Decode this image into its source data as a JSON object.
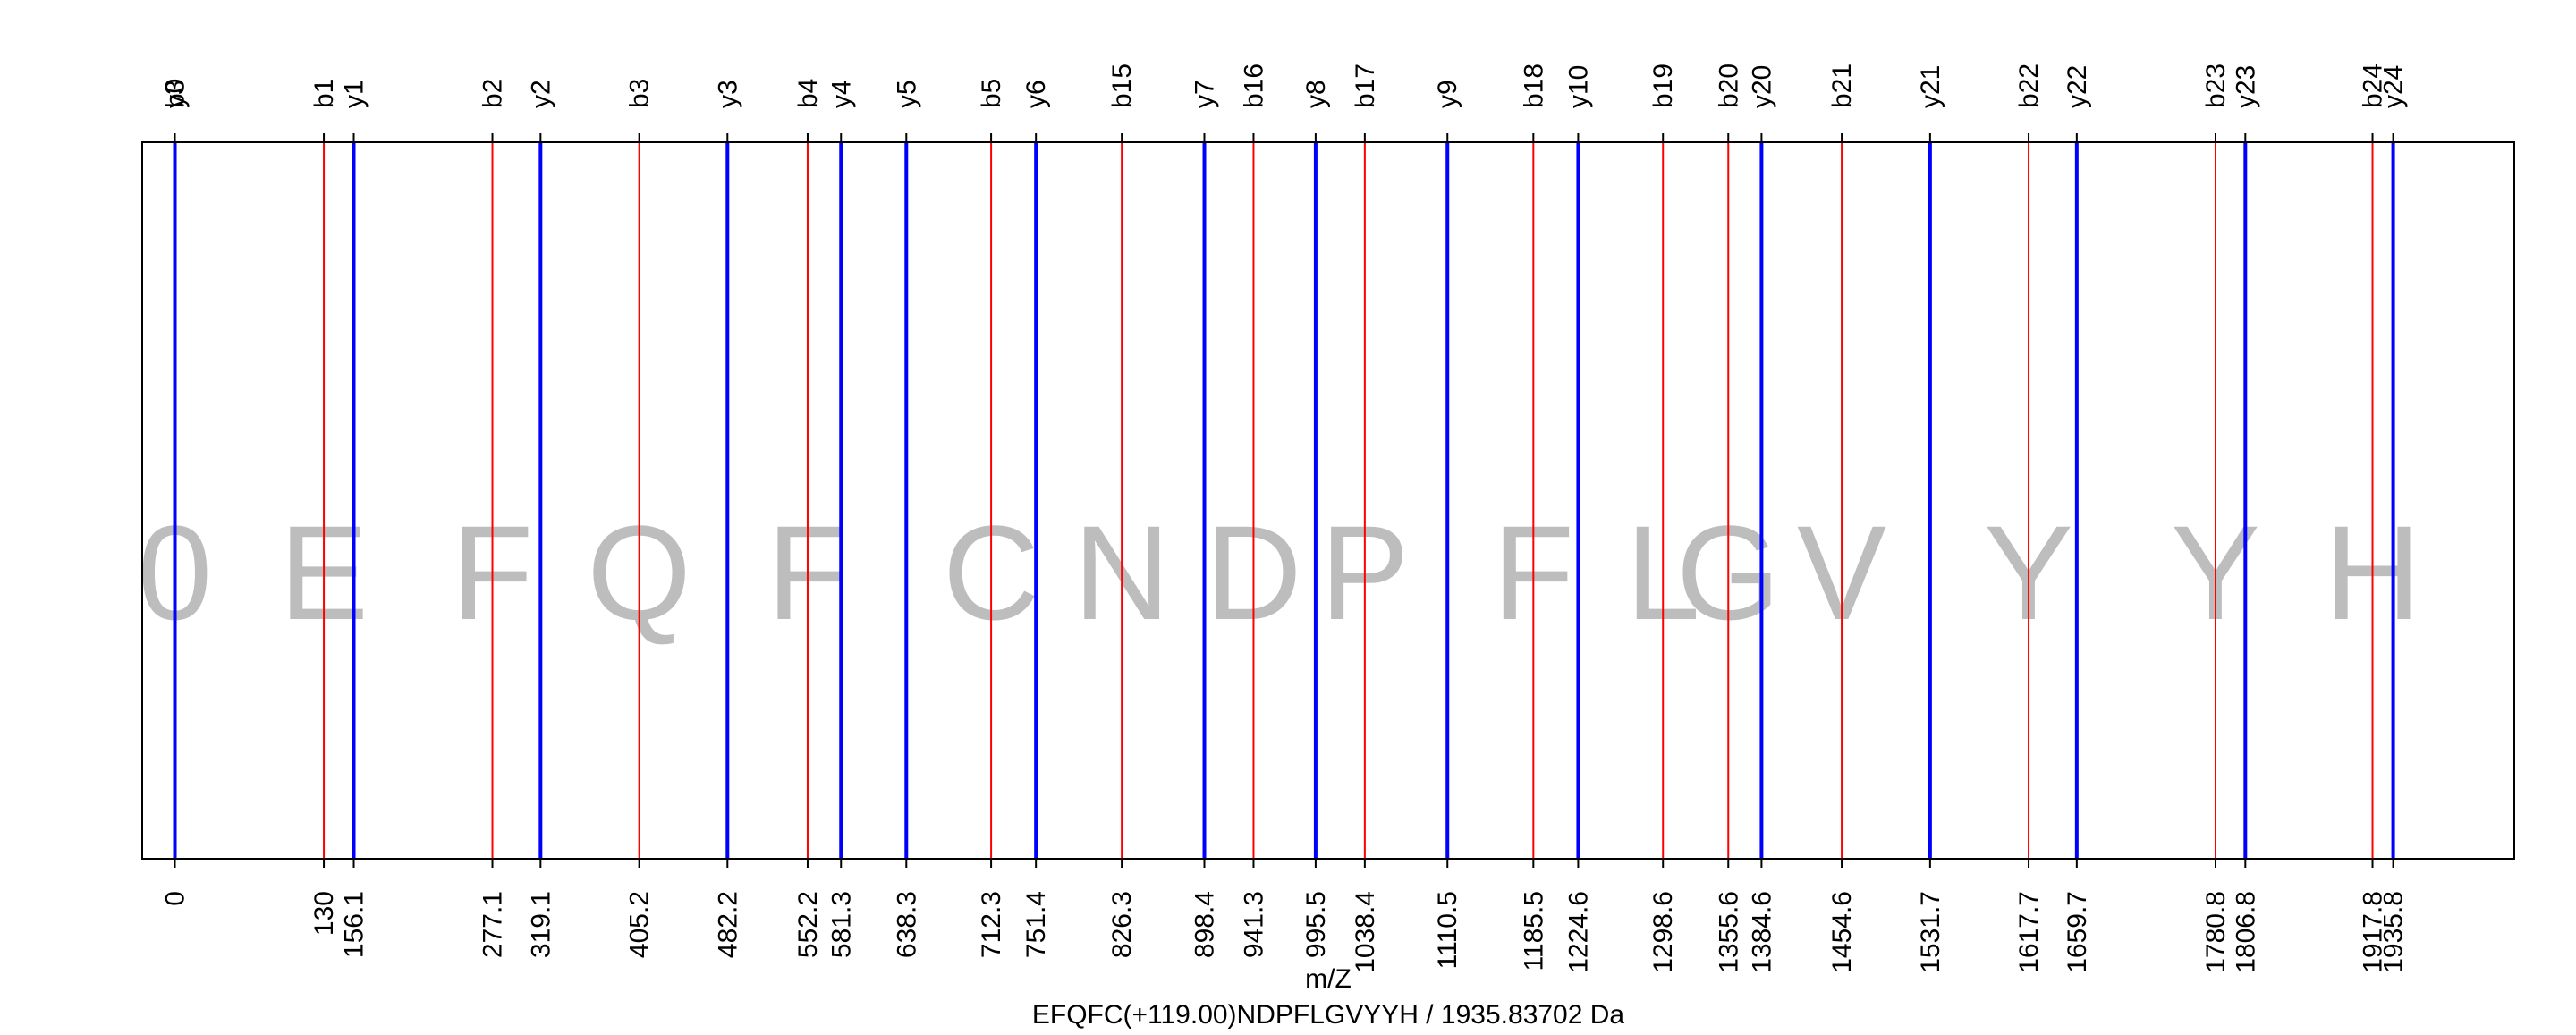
{
  "chart_data": {
    "type": "peptide_fragment_map",
    "xlabel": "m/Z",
    "subtitle": "EFQFC(+119.00)NDPFLGVYYH / 1935.83702 Da",
    "xlim": [
      -28.5,
      2041.5
    ],
    "series": [
      {
        "name": "b",
        "color": "#ff0000",
        "ions": [
          {
            "label": "b0",
            "mz": 0,
            "mz_label": "0"
          },
          {
            "label": "b1",
            "mz": 130.0,
            "mz_label": "130"
          },
          {
            "label": "b2",
            "mz": 277.1,
            "mz_label": "277.1"
          },
          {
            "label": "b3",
            "mz": 405.2,
            "mz_label": "405.2"
          },
          {
            "label": "b4",
            "mz": 552.2,
            "mz_label": "552.2"
          },
          {
            "label": "b5",
            "mz": 712.3,
            "mz_label": "712.3"
          },
          {
            "label": "b15",
            "mz": 826.3,
            "mz_label": "826.3"
          },
          {
            "label": "b16",
            "mz": 941.3,
            "mz_label": "941.3"
          },
          {
            "label": "b17",
            "mz": 1038.4,
            "mz_label": "1038.4"
          },
          {
            "label": "b18",
            "mz": 1185.5,
            "mz_label": "1185.5"
          },
          {
            "label": "b19",
            "mz": 1298.6,
            "mz_label": "1298.6"
          },
          {
            "label": "b20",
            "mz": 1355.6,
            "mz_label": "1355.6"
          },
          {
            "label": "b21",
            "mz": 1454.6,
            "mz_label": "1454.6"
          },
          {
            "label": "b22",
            "mz": 1617.7,
            "mz_label": "1617.7"
          },
          {
            "label": "b23",
            "mz": 1780.8,
            "mz_label": "1780.8"
          },
          {
            "label": "b24",
            "mz": 1917.8,
            "mz_label": "1917.8"
          }
        ]
      },
      {
        "name": "y",
        "color": "#0000ff",
        "ions": [
          {
            "label": "y3",
            "mz": 0,
            "mz_label": ""
          },
          {
            "label": "y1",
            "mz": 156.1,
            "mz_label": "156.1"
          },
          {
            "label": "y2",
            "mz": 319.1,
            "mz_label": "319.1"
          },
          {
            "label": "y3",
            "mz": 482.2,
            "mz_label": "482.2"
          },
          {
            "label": "y4",
            "mz": 581.3,
            "mz_label": "581.3"
          },
          {
            "label": "y5",
            "mz": 638.3,
            "mz_label": "638.3"
          },
          {
            "label": "y6",
            "mz": 751.4,
            "mz_label": "751.4"
          },
          {
            "label": "y7",
            "mz": 898.4,
            "mz_label": "898.4"
          },
          {
            "label": "y8",
            "mz": 995.5,
            "mz_label": "995.5"
          },
          {
            "label": "y9",
            "mz": 1110.5,
            "mz_label": "1110.5"
          },
          {
            "label": "y10",
            "mz": 1224.6,
            "mz_label": "1224.6"
          },
          {
            "label": "y20",
            "mz": 1384.6,
            "mz_label": "1384.6"
          },
          {
            "label": "y21",
            "mz": 1531.7,
            "mz_label": "1531.7"
          },
          {
            "label": "y22",
            "mz": 1659.7,
            "mz_label": "1659.7"
          },
          {
            "label": "y23",
            "mz": 1806.8,
            "mz_label": "1806.8"
          },
          {
            "label": "y24",
            "mz": 1935.8,
            "mz_label": "1935.8"
          }
        ]
      }
    ],
    "residues": [
      {
        "aa": "0",
        "mz": 0
      },
      {
        "aa": "E",
        "mz": 130.0
      },
      {
        "aa": "F",
        "mz": 277.1
      },
      {
        "aa": "Q",
        "mz": 405.2
      },
      {
        "aa": "F",
        "mz": 552.2
      },
      {
        "aa": "C",
        "mz": 712.3
      },
      {
        "aa": "N",
        "mz": 826.3
      },
      {
        "aa": "D",
        "mz": 941.3
      },
      {
        "aa": "P",
        "mz": 1038.4
      },
      {
        "aa": "F",
        "mz": 1185.5
      },
      {
        "aa": "L",
        "mz": 1298.6
      },
      {
        "aa": "G",
        "mz": 1355.6
      },
      {
        "aa": "V",
        "mz": 1454.6
      },
      {
        "aa": "Y",
        "mz": 1617.7
      },
      {
        "aa": "Y",
        "mz": 1780.8
      },
      {
        "aa": "H",
        "mz": 1917.8
      }
    ],
    "colors": {
      "b": "#ff0000",
      "y": "#0000ff",
      "residue": "#bdbdbd",
      "frame": "#000000"
    }
  }
}
